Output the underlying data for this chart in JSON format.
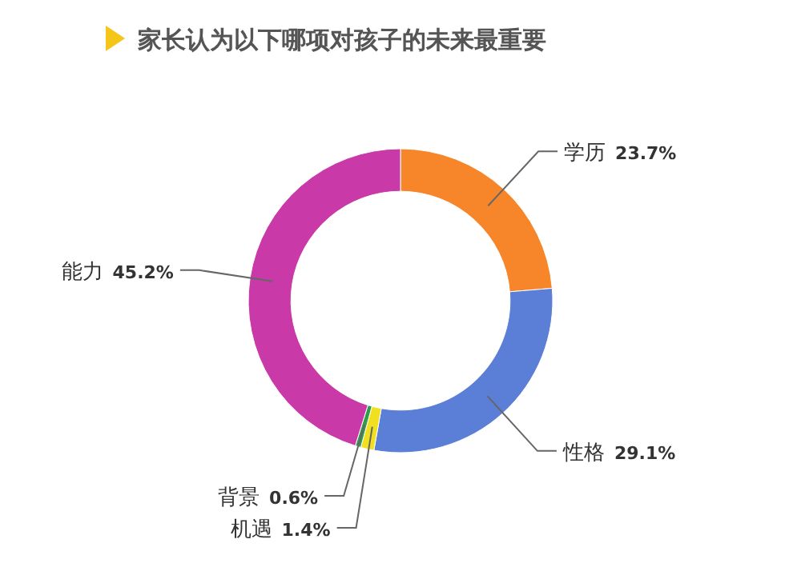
{
  "chart_data": {
    "type": "donut",
    "title": "家长认为以下哪项对孩子的未来最重要",
    "categories": [
      "学历",
      "性格",
      "机遇",
      "背景",
      "能力"
    ],
    "values": [
      23.7,
      29.1,
      1.4,
      0.6,
      45.2
    ],
    "value_labels": [
      "23.7%",
      "29.1%",
      "1.4%",
      "0.6%",
      "45.2%"
    ],
    "colors": [
      "#f7862a",
      "#5b7fd6",
      "#f0e020",
      "#2e9e4a",
      "#c93aa8"
    ]
  }
}
